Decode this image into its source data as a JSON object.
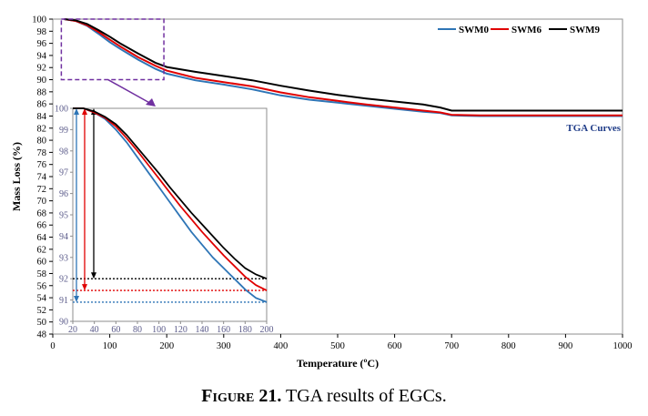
{
  "chart_data": {
    "type": "line",
    "xlabel": "Temperature (ºC)",
    "ylabel": "Mass Loss (%)",
    "xlim": [
      0,
      1000
    ],
    "ylim": [
      48,
      100
    ],
    "xticks": [
      0,
      100,
      200,
      300,
      400,
      500,
      600,
      700,
      800,
      900,
      1000
    ],
    "yticks": [
      48,
      50,
      52,
      54,
      56,
      58,
      60,
      62,
      64,
      66,
      68,
      70,
      72,
      74,
      76,
      78,
      80,
      82,
      84,
      86,
      88,
      90,
      92,
      94,
      96,
      98,
      100
    ],
    "grid": false,
    "legend_position": "top-right",
    "annotation": "TGA Curves",
    "series": [
      {
        "name": "SWM0",
        "color": "#2e75b6",
        "x": [
          20,
          40,
          60,
          80,
          100,
          120,
          150,
          180,
          200,
          250,
          300,
          350,
          400,
          450,
          500,
          550,
          600,
          650,
          680,
          700,
          750,
          800,
          850,
          900,
          950,
          1000
        ],
        "y": [
          100,
          99.7,
          98.9,
          97.6,
          96.2,
          95.0,
          93.3,
          91.8,
          91.0,
          89.9,
          89.2,
          88.4,
          87.4,
          86.7,
          86.2,
          85.7,
          85.2,
          84.7,
          84.5,
          84.1,
          84.0,
          84.0,
          84.0,
          84.0,
          84.0,
          84.0
        ]
      },
      {
        "name": "SWM6",
        "color": "#e00000",
        "x": [
          20,
          40,
          60,
          80,
          100,
          120,
          150,
          180,
          200,
          250,
          300,
          350,
          400,
          450,
          500,
          550,
          600,
          650,
          680,
          700,
          750,
          800,
          850,
          900,
          950,
          1000
        ],
        "y": [
          100,
          99.7,
          99.0,
          97.9,
          96.6,
          95.4,
          93.7,
          92.3,
          91.5,
          90.3,
          89.6,
          88.9,
          87.9,
          87.1,
          86.5,
          85.9,
          85.4,
          84.9,
          84.6,
          84.2,
          84.1,
          84.1,
          84.1,
          84.1,
          84.1,
          84.1
        ]
      },
      {
        "name": "SWM9",
        "color": "#000000",
        "x": [
          20,
          40,
          60,
          80,
          100,
          120,
          150,
          180,
          200,
          250,
          300,
          350,
          400,
          450,
          500,
          550,
          600,
          650,
          680,
          700,
          750,
          800,
          850,
          900,
          950,
          1000
        ],
        "y": [
          100,
          99.8,
          99.2,
          98.2,
          97.1,
          95.9,
          94.3,
          92.8,
          92.1,
          91.3,
          90.6,
          89.9,
          89.0,
          88.2,
          87.5,
          86.9,
          86.4,
          85.9,
          85.4,
          84.9,
          84.9,
          84.9,
          84.9,
          84.9,
          84.9,
          84.9
        ]
      }
    ],
    "inset": {
      "xlim": [
        20,
        200
      ],
      "ylim": [
        90,
        100
      ],
      "xticks": [
        20,
        40,
        60,
        80,
        100,
        120,
        140,
        160,
        180,
        200
      ],
      "yticks": [
        90,
        91,
        92,
        93,
        94,
        95,
        96,
        97,
        98,
        99,
        100
      ],
      "x": [
        20,
        30,
        40,
        50,
        60,
        70,
        80,
        90,
        100,
        110,
        120,
        130,
        140,
        150,
        160,
        170,
        180,
        190,
        200
      ],
      "series": [
        {
          "name": "SWM0",
          "color": "#2e75b6",
          "y": [
            100,
            100,
            99.8,
            99.5,
            99.0,
            98.4,
            97.7,
            97.0,
            96.3,
            95.6,
            94.9,
            94.2,
            93.6,
            93.0,
            92.5,
            92.0,
            91.5,
            91.1,
            90.9
          ]
        },
        {
          "name": "SWM6",
          "color": "#e00000",
          "y": [
            100,
            100,
            99.8,
            99.55,
            99.15,
            98.6,
            98.0,
            97.35,
            96.7,
            96.05,
            95.4,
            94.8,
            94.2,
            93.65,
            93.1,
            92.6,
            92.1,
            91.7,
            91.45
          ]
        },
        {
          "name": "SWM9",
          "color": "#000000",
          "y": [
            100,
            100,
            99.85,
            99.6,
            99.25,
            98.75,
            98.15,
            97.55,
            96.95,
            96.3,
            95.7,
            95.1,
            94.55,
            94.0,
            93.45,
            92.95,
            92.5,
            92.2,
            92.0
          ]
        }
      ],
      "final_levels": [
        {
          "series": "SWM9",
          "color": "#000000",
          "y": 92.0
        },
        {
          "series": "SWM6",
          "color": "#e00000",
          "y": 91.45
        },
        {
          "series": "SWM0",
          "color": "#2e75b6",
          "y": 90.9
        }
      ]
    }
  },
  "caption": {
    "label": "Figure 21.",
    "text": " TGA results of EGCs."
  }
}
